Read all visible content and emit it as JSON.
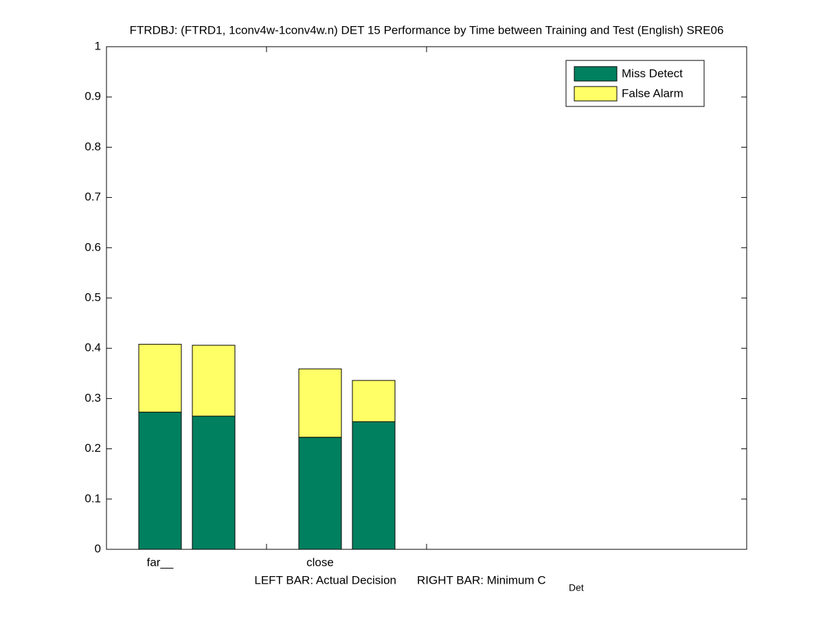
{
  "chart_data": {
    "type": "stacked-bar-pairs",
    "title": "FTRDBJ: (FTRD1, 1conv4w-1conv4w.n) DET 15 Performance by Time between Training and Test (English) SRE06",
    "categories": [
      "far__",
      "close"
    ],
    "series": [
      {
        "name": "Miss Detect",
        "color": "#00805f",
        "values": [
          [
            0.273,
            0.265
          ],
          [
            0.223,
            0.254
          ]
        ]
      },
      {
        "name": "False Alarm",
        "color": "#ffff66",
        "values": [
          [
            0.135,
            0.141
          ],
          [
            0.136,
            0.082
          ]
        ]
      }
    ],
    "x_label": {
      "left": "LEFT BAR: Actual Decision",
      "right": "RIGHT BAR: Minimum C",
      "subscript": "Det"
    },
    "ylim": [
      0,
      1
    ],
    "yticks": [
      0,
      0.1,
      0.2,
      0.3,
      0.4,
      0.5,
      0.6,
      0.7,
      0.8,
      0.9,
      1
    ],
    "legend": "upper-right"
  }
}
